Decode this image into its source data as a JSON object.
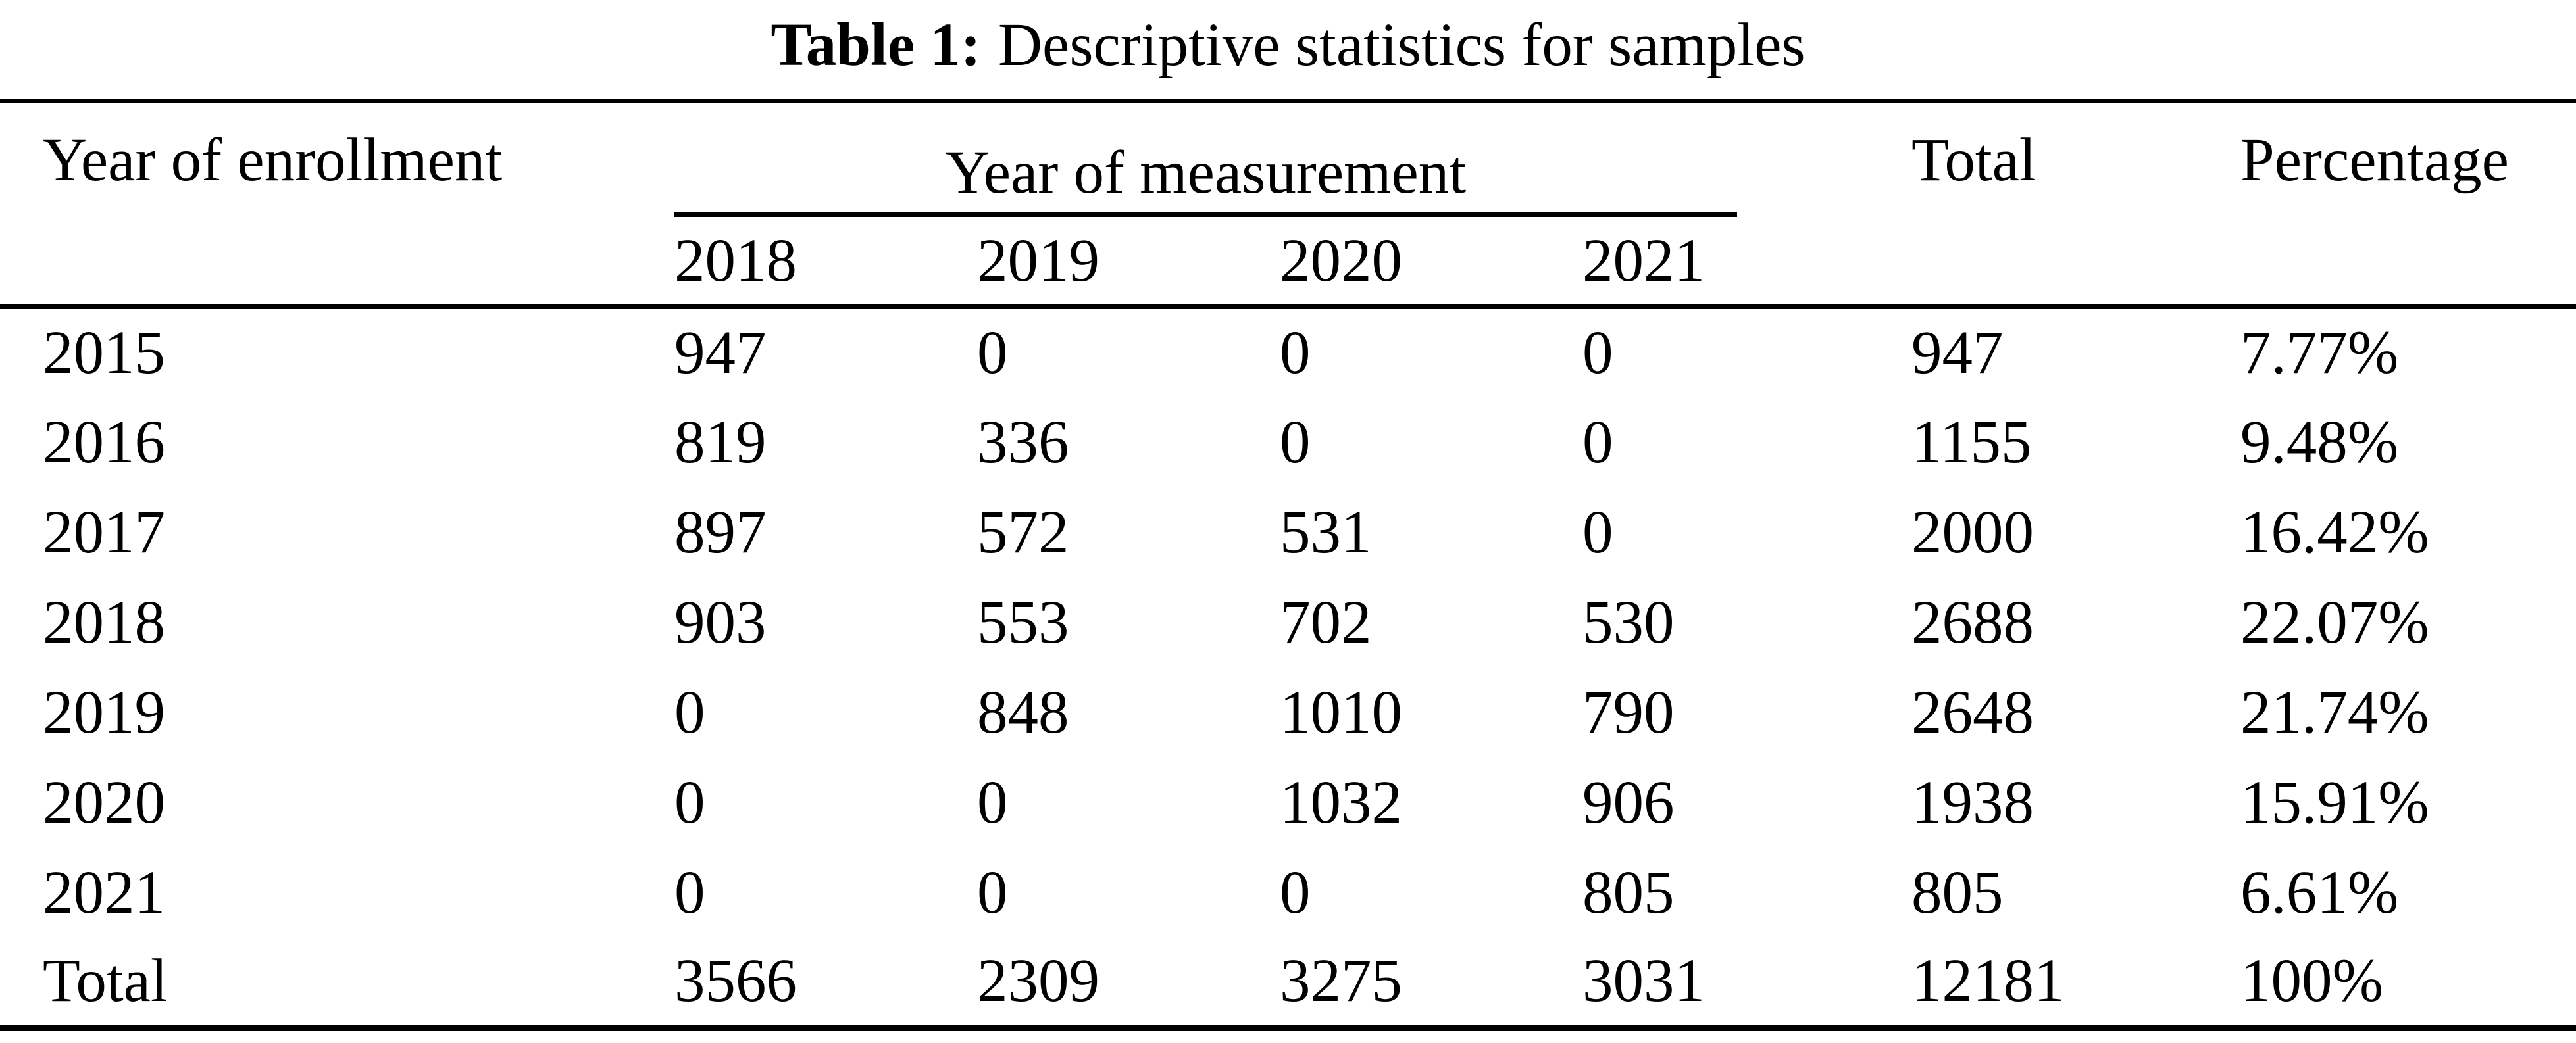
{
  "colors": {
    "text": "#000000",
    "background": "#ffffff",
    "rule": "#000000"
  },
  "caption": {
    "label": "Table 1:",
    "text": "Descriptive statistics for samples"
  },
  "headers": {
    "enrollment": "Year of enrollment",
    "measurement_group": "Year of measurement",
    "years": [
      "2018",
      "2019",
      "2020",
      "2021"
    ],
    "total": "Total",
    "percentage": "Percentage"
  },
  "rows": [
    {
      "label": "2015",
      "values": [
        "947",
        "0",
        "0",
        "0"
      ],
      "total": "947",
      "percentage": "7.77%"
    },
    {
      "label": "2016",
      "values": [
        "819",
        "336",
        "0",
        "0"
      ],
      "total": "1155",
      "percentage": "9.48%"
    },
    {
      "label": "2017",
      "values": [
        "897",
        "572",
        "531",
        "0"
      ],
      "total": "2000",
      "percentage": "16.42%"
    },
    {
      "label": "2018",
      "values": [
        "903",
        "553",
        "702",
        "530"
      ],
      "total": "2688",
      "percentage": "22.07%"
    },
    {
      "label": "2019",
      "values": [
        "0",
        "848",
        "1010",
        "790"
      ],
      "total": "2648",
      "percentage": "21.74%"
    },
    {
      "label": "2020",
      "values": [
        "0",
        "0",
        "1032",
        "906"
      ],
      "total": "1938",
      "percentage": "15.91%"
    },
    {
      "label": "2021",
      "values": [
        "0",
        "0",
        "0",
        "805"
      ],
      "total": "805",
      "percentage": "6.61%"
    },
    {
      "label": "Total",
      "values": [
        "3566",
        "2309",
        "3275",
        "3031"
      ],
      "total": "12181",
      "percentage": "100%"
    }
  ]
}
